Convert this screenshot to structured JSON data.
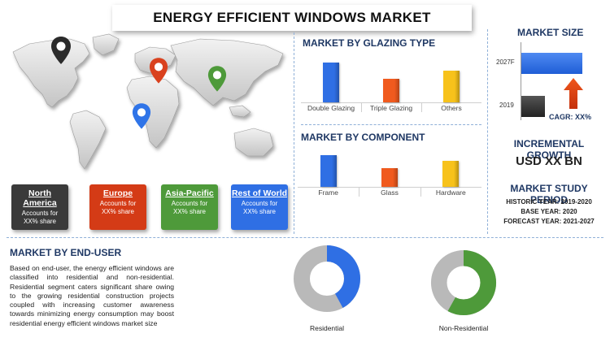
{
  "title": "ENERGY EFFICIENT WINDOWS MARKET",
  "map": {
    "pins": [
      {
        "name": "north-america-pin-icon",
        "color": "#2b2b2b"
      },
      {
        "name": "europe-pin-icon",
        "color": "#d9411e"
      },
      {
        "name": "asia-pacific-pin-icon",
        "color": "#4e9a3a"
      },
      {
        "name": "rest-of-world-pin-icon",
        "color": "#2f74e8"
      }
    ]
  },
  "regions": [
    {
      "name": "North America",
      "desc": "Accounts for XX% share",
      "color": "#3a3a3a"
    },
    {
      "name": "Europe",
      "desc": "Accounts for XX% share",
      "color": "#d43b16"
    },
    {
      "name": "Asia-Pacific",
      "desc": "Accounts for XX% share",
      "color": "#4e9a3a"
    },
    {
      "name": "Rest of World",
      "desc": "Accounts for XX% share",
      "color": "#2f6fe4"
    }
  ],
  "glazing": {
    "title": "MARKET BY GLAZING TYPE",
    "chart_data": {
      "type": "bar",
      "categories": [
        "Double Glazing",
        "Triple Glazing",
        "Others"
      ],
      "values": [
        34,
        20,
        27
      ],
      "colors": [
        "#2f6fe4",
        "#f05a1e",
        "#f7c21b"
      ],
      "ylim": [
        0,
        40
      ]
    }
  },
  "component": {
    "title": "MARKET BY COMPONENT",
    "chart_data": {
      "type": "bar",
      "categories": [
        "Frame",
        "Glass",
        "Hardware"
      ],
      "values": [
        34,
        20,
        28
      ],
      "colors": [
        "#2f6fe4",
        "#f05a1e",
        "#f7c21b"
      ],
      "ylim": [
        0,
        40
      ]
    }
  },
  "market_size": {
    "title": "MARKET SIZE",
    "bars": [
      {
        "label": "2027F",
        "value": 100,
        "color": "#2f6fe4"
      },
      {
        "label": "2019",
        "value": 38,
        "color": "#3a3a3a"
      }
    ],
    "cagr": "CAGR: XX%"
  },
  "incremental": {
    "title": "INCREMENTAL GROWTH",
    "value": "USD XX BN"
  },
  "study_period": {
    "title": "MARKET STUDY PERIOD",
    "historic": "HISTORIC YEAR: 2019-2020",
    "base": "BASE YEAR: 2020",
    "forecast": "FORECAST YEAR: 2021-2027"
  },
  "end_user": {
    "title": "MARKET BY END-USER",
    "text": "Based on end-user, the energy efficient windows are classified into residential and non-residential. Residential segment caters significant share owing to the growing residential construction projects coupled with increasing customer awareness towards minimizing energy consumption may boost residential energy efficient windows market size",
    "chart_data": [
      {
        "type": "pie",
        "label": "Residential",
        "share": 0.42,
        "color": "#2f6fe4",
        "rest_color": "#b9b9b9"
      },
      {
        "type": "pie",
        "label": "Non-Residential",
        "share": 0.58,
        "color": "#4e9a3a",
        "rest_color": "#b9b9b9"
      }
    ]
  }
}
